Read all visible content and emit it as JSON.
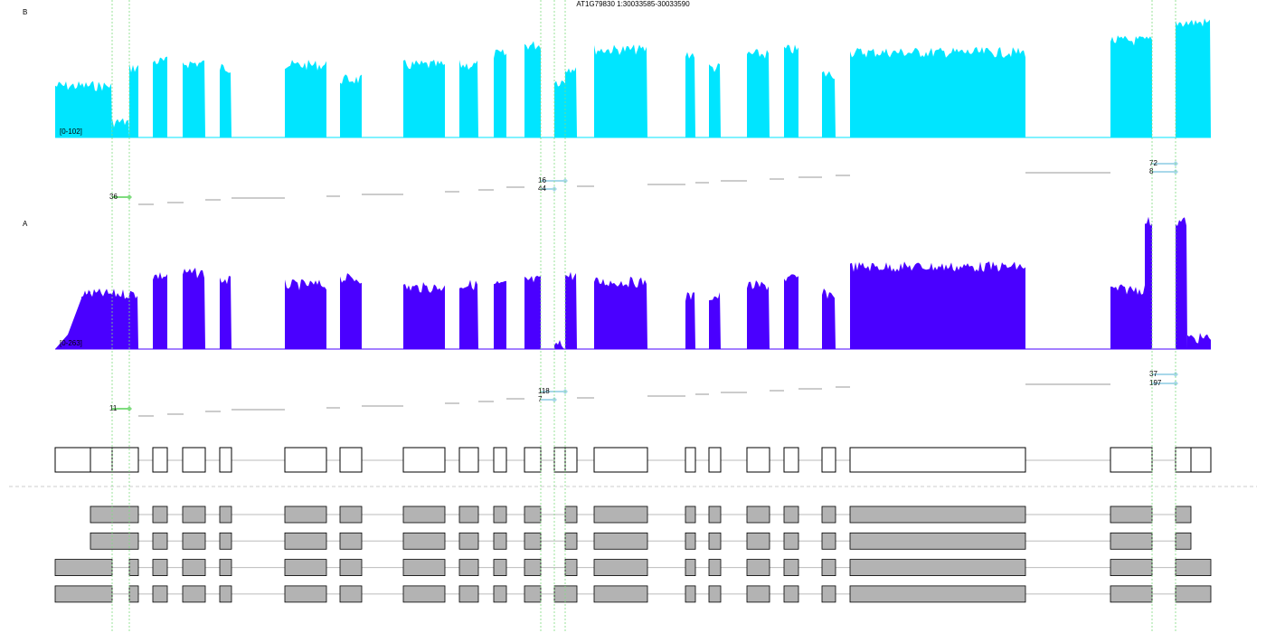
{
  "title": "AT1G79830 1:30033585-30033590",
  "tracks": [
    {
      "label": "B",
      "range": "[0-102]",
      "junctions": [
        {
          "count": 36
        },
        {
          "count": 16
        },
        {
          "count": 44
        },
        {
          "count": 72
        },
        {
          "count": 8
        }
      ]
    },
    {
      "label": "A",
      "range": "[0-263]",
      "junctions": [
        {
          "count": 11
        },
        {
          "count": 118
        },
        {
          "count": 7
        },
        {
          "count": 37
        },
        {
          "count": 197
        }
      ]
    }
  ]
}
